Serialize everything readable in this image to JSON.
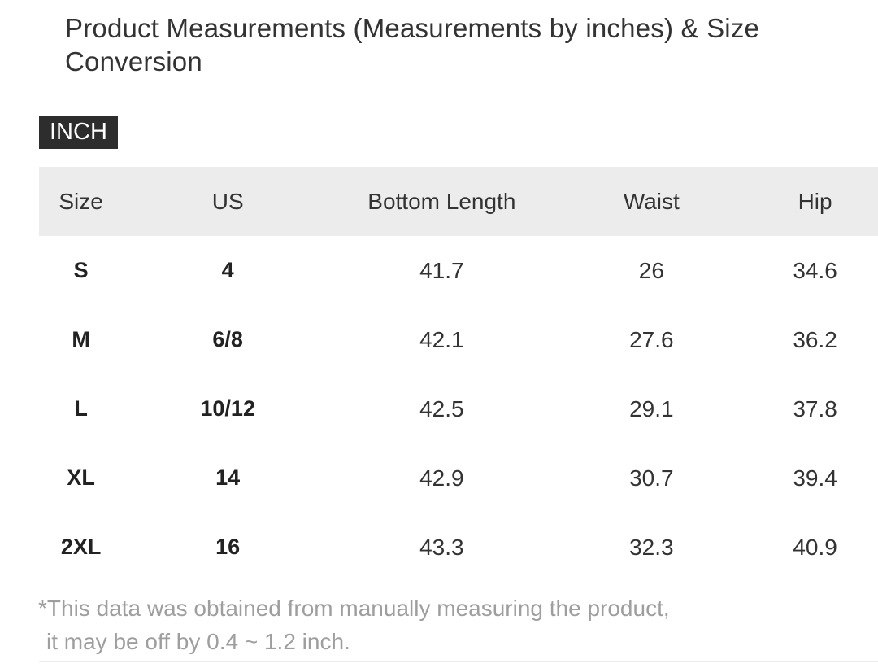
{
  "page": {
    "title": "Product Measurements (Measurements by inches) & Size Conversion",
    "unit_badge": "INCH",
    "note_line1": "*This data was obtained from manually measuring the product,",
    "note_line2": "it may be off by 0.4 ~ 1.2 inch."
  },
  "size_table": {
    "columns": [
      "Size",
      "US",
      "Bottom Length",
      "Waist",
      "Hip"
    ],
    "rows": [
      [
        "S",
        "4",
        "41.7",
        "26",
        "34.6"
      ],
      [
        "M",
        "6/8",
        "42.1",
        "27.6",
        "36.2"
      ],
      [
        "L",
        "10/12",
        "42.5",
        "29.1",
        "37.8"
      ],
      [
        "XL",
        "14",
        "42.9",
        "30.7",
        "39.4"
      ],
      [
        "2XL",
        "16",
        "43.3",
        "32.3",
        "40.9"
      ]
    ]
  },
  "colors": {
    "badge_bg": "#2d2d2d",
    "badge_text": "#ffffff",
    "header_bg": "#ececec",
    "text_primary": "#333333",
    "note_text": "#9e9e9e"
  }
}
